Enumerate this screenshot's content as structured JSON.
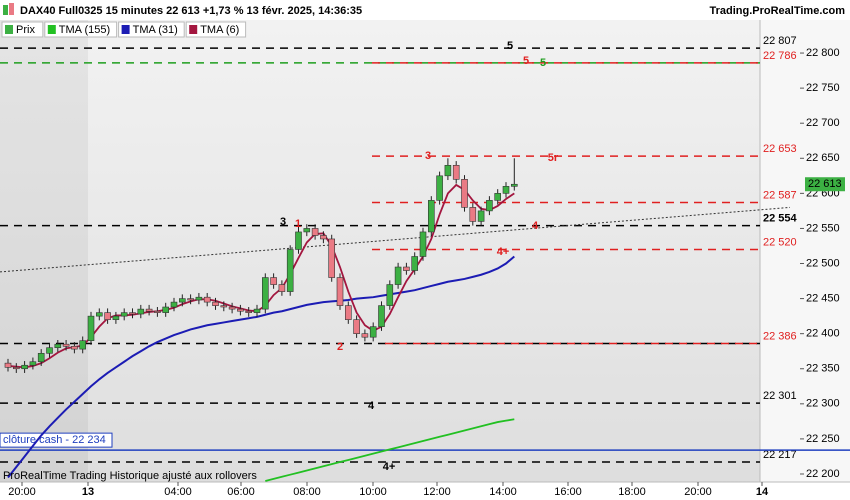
{
  "header": {
    "title": "DAX40 Full0325 15 minutes 22 613 +1,73 % 13 févr. 2025, 14:36:35",
    "site": "Trading.ProRealTime.com"
  },
  "chart_data": {
    "type": "candlestick",
    "candles": {
      "name": "Prix",
      "up_color": "#3cb043",
      "down_color": "#ea7a84",
      "open": [
        22358,
        22352,
        22350,
        22355,
        22360,
        22372,
        22380,
        22385,
        22382,
        22378,
        22390,
        22425,
        22430,
        22420,
        22425,
        22430,
        22428,
        22435,
        22432,
        22430,
        22438,
        22445,
        22450,
        22448,
        22452,
        22445,
        22440,
        22438,
        22435,
        22432,
        22430,
        22435,
        22480,
        22470,
        22460,
        22520,
        22545,
        22550,
        22540,
        22535,
        22480,
        22440,
        22420,
        22400,
        22395,
        22410,
        22440,
        22470,
        22495,
        22490,
        22510,
        22545,
        22590,
        22625,
        22640,
        22620,
        22580,
        22560,
        22575,
        22590,
        22600,
        22610
      ],
      "high": [
        22364,
        22358,
        22361,
        22366,
        22378,
        22386,
        22391,
        22391,
        22388,
        22396,
        22431,
        22436,
        22436,
        22431,
        22436,
        22436,
        22441,
        22441,
        22438,
        22444,
        22451,
        22456,
        22456,
        22458,
        22458,
        22451,
        22446,
        22444,
        22441,
        22438,
        22441,
        22486,
        22486,
        22476,
        22526,
        22556,
        22556,
        22556,
        22546,
        22541,
        22486,
        22446,
        22426,
        22406,
        22416,
        22446,
        22476,
        22501,
        22501,
        22516,
        22551,
        22596,
        22631,
        22650,
        22646,
        22626,
        22586,
        22581,
        22596,
        22606,
        22616,
        22650
      ],
      "low": [
        22346,
        22344,
        22344,
        22349,
        22354,
        22366,
        22374,
        22376,
        22372,
        22372,
        22384,
        22419,
        22414,
        22414,
        22419,
        22422,
        22422,
        22426,
        22424,
        22424,
        22432,
        22439,
        22442,
        22442,
        22439,
        22434,
        22432,
        22429,
        22426,
        22424,
        22424,
        22429,
        22464,
        22454,
        22454,
        22514,
        22539,
        22534,
        22529,
        22474,
        22434,
        22414,
        22394,
        22389,
        22389,
        22404,
        22434,
        22464,
        22484,
        22484,
        22504,
        22539,
        22584,
        22619,
        22614,
        22574,
        22554,
        22554,
        22569,
        22584,
        22594,
        22604
      ],
      "close": [
        22352,
        22350,
        22355,
        22360,
        22372,
        22380,
        22385,
        22382,
        22378,
        22390,
        22425,
        22430,
        22420,
        22425,
        22430,
        22428,
        22435,
        22432,
        22430,
        22438,
        22445,
        22450,
        22448,
        22452,
        22445,
        22440,
        22438,
        22435,
        22432,
        22430,
        22435,
        22480,
        22470,
        22460,
        22520,
        22545,
        22550,
        22540,
        22535,
        22480,
        22440,
        22420,
        22400,
        22395,
        22410,
        22440,
        22470,
        22495,
        22490,
        22510,
        22545,
        22590,
        22625,
        22640,
        22620,
        22580,
        22560,
        22575,
        22590,
        22600,
        22610,
        22613
      ]
    },
    "series": [
      {
        "name": "TMA (155)",
        "color": "#22c022",
        "values": [
          null,
          null,
          null,
          null,
          null,
          null,
          null,
          null,
          null,
          null,
          null,
          null,
          null,
          null,
          null,
          null,
          null,
          null,
          null,
          null,
          null,
          null,
          null,
          null,
          null,
          null,
          null,
          null,
          null,
          null,
          null,
          22190,
          22193,
          22196,
          22199,
          22202,
          22205,
          22208,
          22211,
          22214,
          22217,
          22220,
          22223,
          22226,
          22229,
          22232,
          22235,
          22238,
          22241,
          22244,
          22247,
          22250,
          22253,
          22256,
          22259,
          22262,
          22265,
          22268,
          22271,
          22274,
          22276,
          22278
        ]
      },
      {
        "name": "TMA (31)",
        "color": "#1c1cb4",
        "values": [
          22195,
          22210,
          22225,
          22240,
          22255,
          22268,
          22280,
          22292,
          22303,
          22314,
          22325,
          22335,
          22344,
          22352,
          22360,
          22368,
          22375,
          22382,
          22388,
          22393,
          22398,
          22402,
          22406,
          22409,
          22412,
          22414,
          22416,
          22418,
          22420,
          22422,
          22424,
          22427,
          22430,
          22432,
          22435,
          22438,
          22441,
          22443,
          22445,
          22446,
          22447,
          22448,
          22450,
          22451,
          22452,
          22454,
          22456,
          22458,
          22460,
          22462,
          22465,
          22468,
          22471,
          22474,
          22476,
          22478,
          22481,
          22484,
          22488,
          22493,
          22500,
          22510
        ]
      },
      {
        "name": "TMA (6)",
        "color": "#a3163f",
        "values": [
          22354,
          22353,
          22352,
          22354,
          22358,
          22365,
          22373,
          22379,
          22381,
          22383,
          22395,
          22410,
          22422,
          22426,
          22426,
          22427,
          22429,
          22431,
          22432,
          22434,
          22437,
          22442,
          22446,
          22449,
          22449,
          22447,
          22443,
          22439,
          22436,
          22433,
          22432,
          22440,
          22455,
          22465,
          22485,
          22508,
          22530,
          22542,
          22543,
          22525,
          22495,
          22460,
          22430,
          22412,
          22404,
          22410,
          22428,
          22452,
          22475,
          22492,
          22510,
          22535,
          22570,
          22600,
          22612,
          22605,
          22590,
          22578,
          22576,
          22582,
          22592,
          22600
        ]
      }
    ],
    "levels": [
      {
        "value": 22807,
        "label": "22 807",
        "color": "#000000"
      },
      {
        "value": 22786,
        "color": "#1e9e1e"
      },
      {
        "value": 22786,
        "label": "22 786",
        "color": "#e02020"
      },
      {
        "value": 22653,
        "label": "22 653",
        "color": "#e02020"
      },
      {
        "value": 22587,
        "label": "22 587",
        "color": "#e02020"
      },
      {
        "value": 22554,
        "label": "22 554",
        "color": "#000000"
      },
      {
        "value": 22520,
        "label": "22 520",
        "color": "#e02020"
      },
      {
        "value": 22386,
        "color": "#000000"
      },
      {
        "value": 22386,
        "label": "22 386",
        "color": "#e02020"
      },
      {
        "value": 22301,
        "label": "22 301",
        "color": "#000000"
      },
      {
        "value": 22217,
        "label": "22 217",
        "color": "#000000"
      }
    ],
    "cash": {
      "value": 22234,
      "label": "clôture cash -  22 234",
      "color": "#1f3fbf"
    },
    "trendline": [
      22488,
      22580
    ],
    "last": {
      "value": 22613,
      "label": "22 613"
    },
    "annotations": [
      {
        "text": "5",
        "color": "#000000"
      },
      {
        "text": "5",
        "color": "#e02020"
      },
      {
        "text": "5",
        "color": "#1e9e1e"
      },
      {
        "text": "1",
        "color": "#e02020"
      },
      {
        "text": "3",
        "color": "#000000"
      },
      {
        "text": "3",
        "color": "#e02020"
      },
      {
        "text": "5r",
        "color": "#e02020"
      },
      {
        "text": "4",
        "color": "#e02020"
      },
      {
        "text": "4+",
        "color": "#e02020"
      },
      {
        "text": "2",
        "color": "#e02020"
      },
      {
        "text": "4",
        "color": "#000000"
      },
      {
        "text": "4+",
        "color": "#000000"
      }
    ],
    "ylim": [
      22190,
      22830
    ],
    "yticks": [
      {
        "value": 22200,
        "label": "22 200"
      },
      {
        "value": 22250,
        "label": "22 250"
      },
      {
        "value": 22300,
        "label": "22 300"
      },
      {
        "value": 22350,
        "label": "22 350"
      },
      {
        "value": 22400,
        "label": "22 400"
      },
      {
        "value": 22450,
        "label": "22 450"
      },
      {
        "value": 22500,
        "label": "22 500"
      },
      {
        "value": 22550,
        "label": "22 550"
      },
      {
        "value": 22600,
        "label": "22 600"
      },
      {
        "value": 22650,
        "label": "22 650"
      },
      {
        "value": 22700,
        "label": "22 700"
      },
      {
        "value": 22750,
        "label": "22 750"
      },
      {
        "value": 22800,
        "label": "22 800"
      }
    ],
    "xticks": [
      "20:00",
      "13",
      "04:00",
      "06:00",
      "08:00",
      "10:00",
      "12:00",
      "14:00",
      "16:00",
      "18:00",
      "20:00",
      "14"
    ],
    "footer": "ProRealTime Trading Historique ajusté aux rollovers"
  }
}
